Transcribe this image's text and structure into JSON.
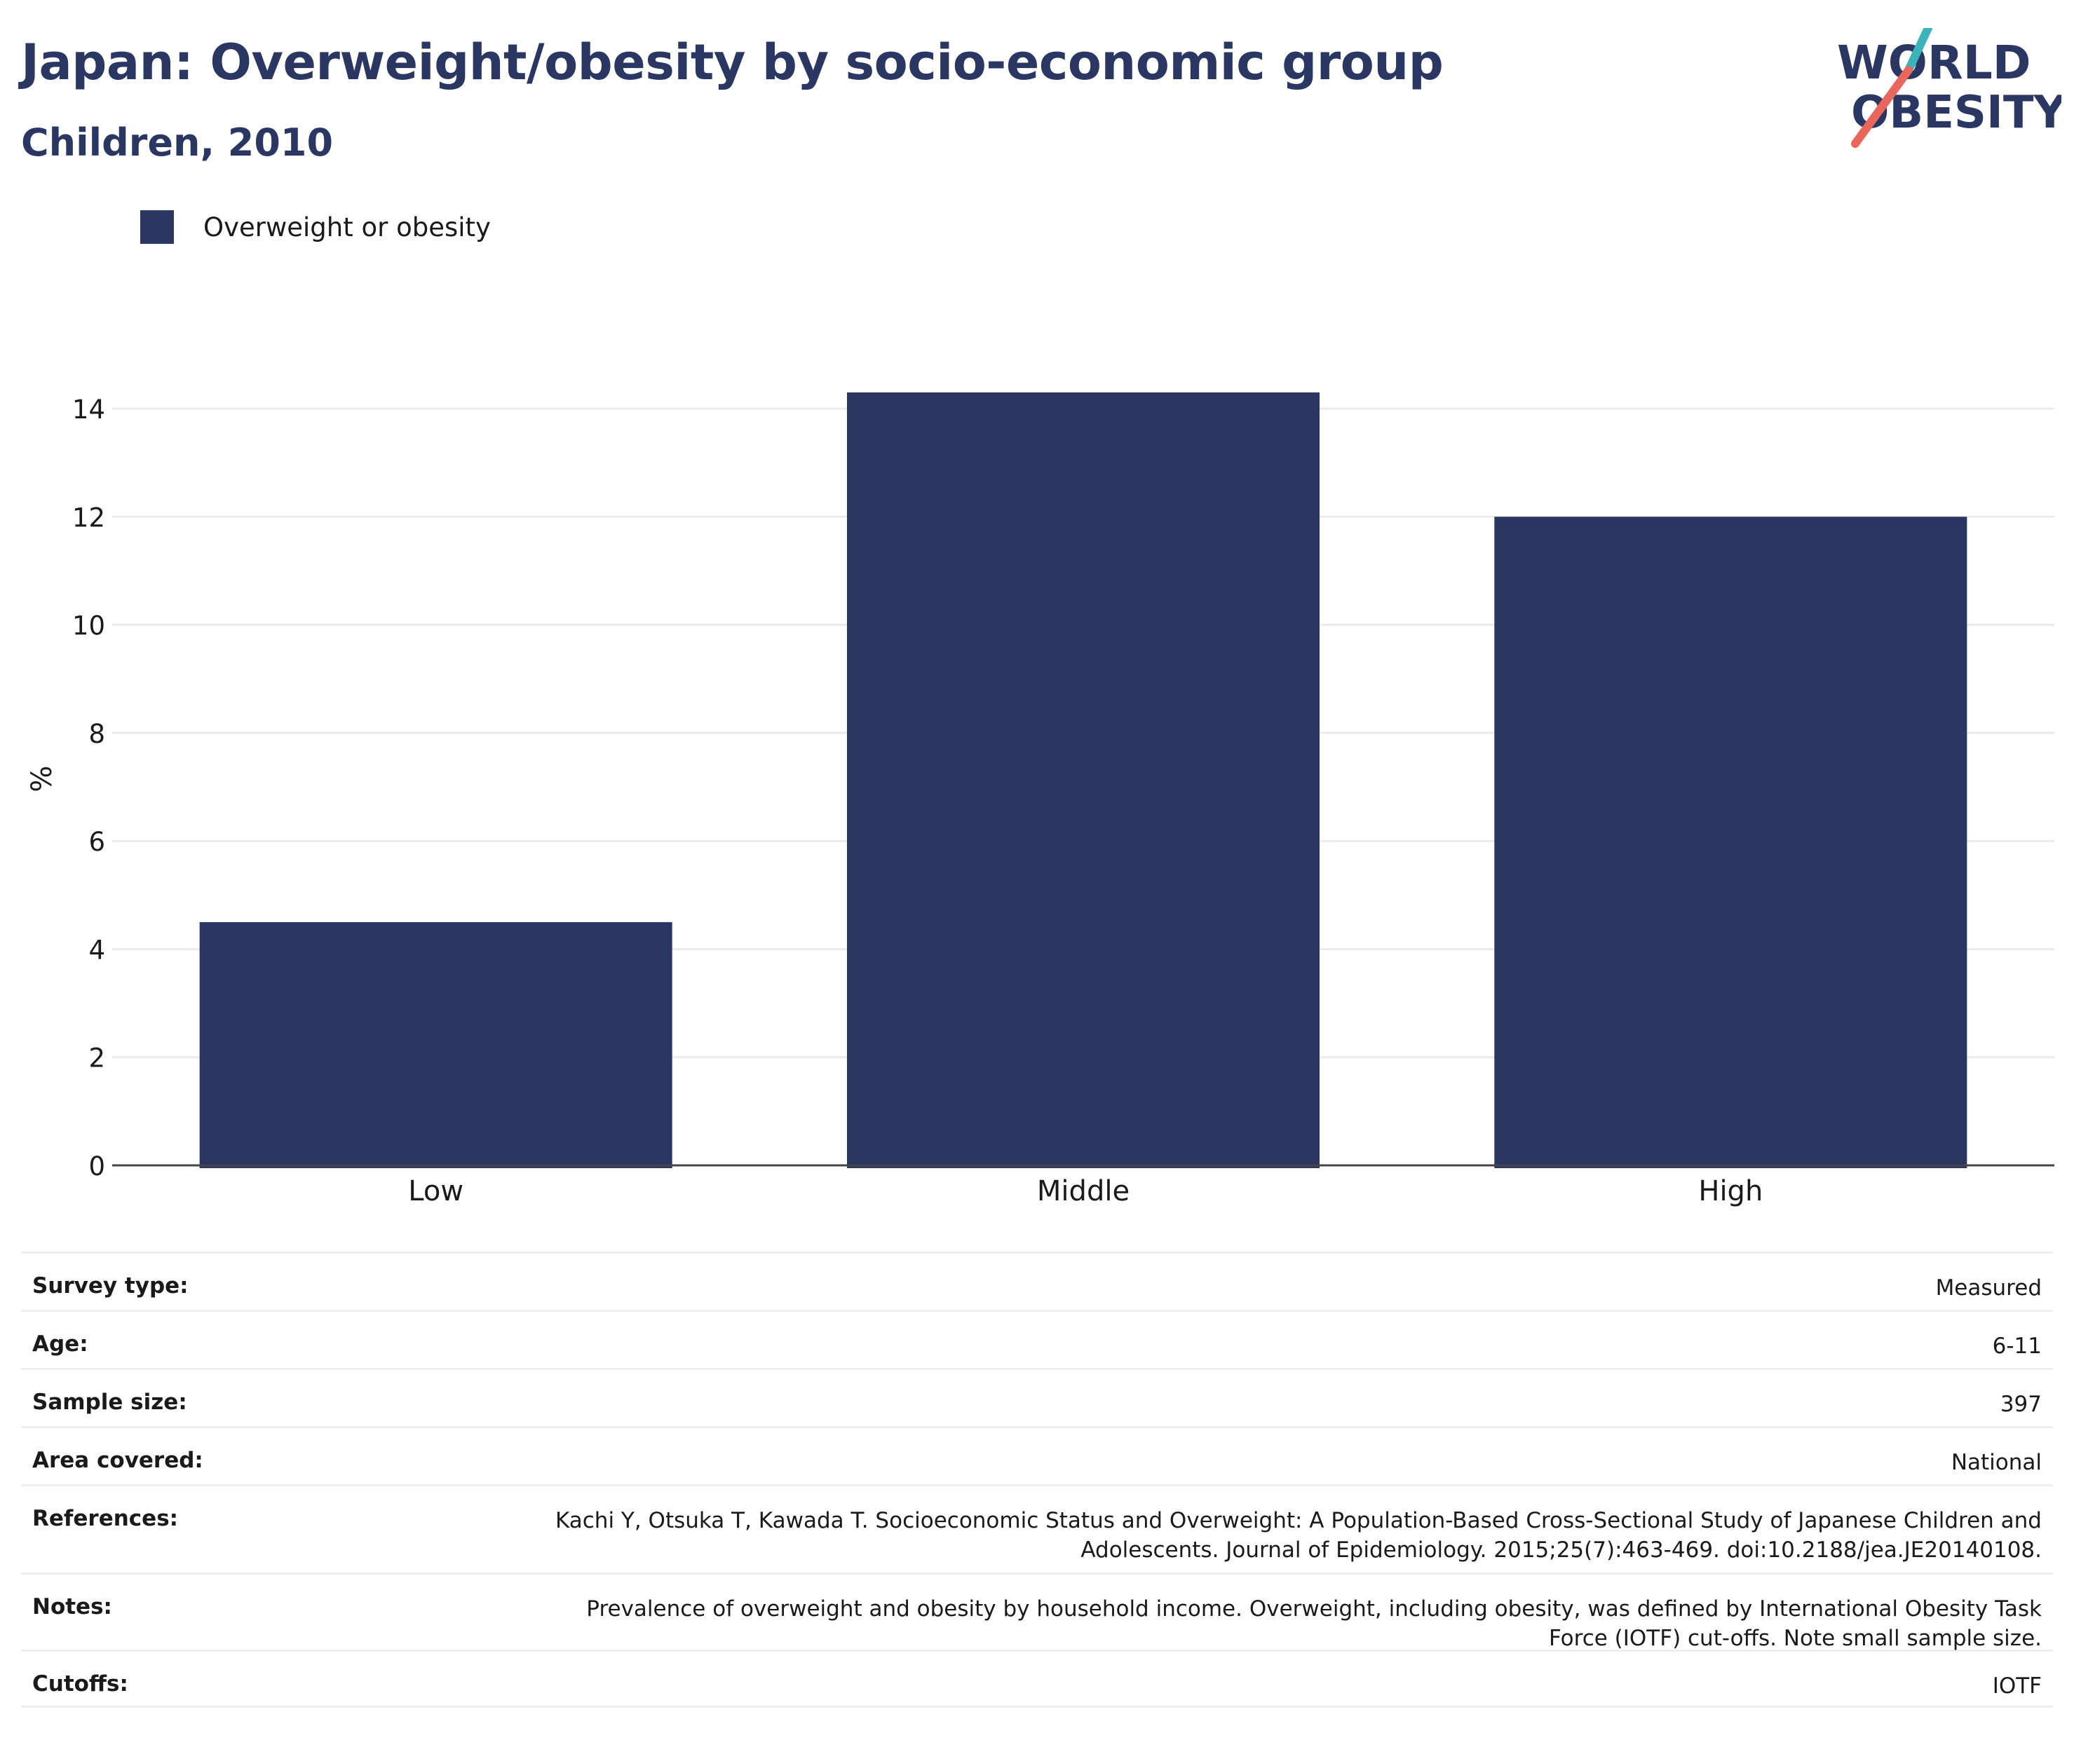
{
  "header": {
    "title": "Japan: Overweight/obesity by socio-economic group",
    "subtitle": "Children, 2010"
  },
  "logo": {
    "line1": "WORLD",
    "line2": "OBESITY",
    "colors": {
      "text": "#2b3763",
      "slash_top": "#3bb3b8",
      "slash_bottom": "#e8675a"
    }
  },
  "chart_data": {
    "type": "bar",
    "categories": [
      "Low",
      "Middle",
      "High"
    ],
    "series": [
      {
        "name": "Overweight or obesity",
        "values": [
          4.5,
          14.3,
          12.0
        ],
        "color": "#2b3763"
      }
    ],
    "title": "Japan: Overweight/obesity by socio-economic group",
    "subtitle": "Children, 2010",
    "xlabel": "",
    "ylabel": "%",
    "ylim": [
      0,
      14.3
    ],
    "yticks": [
      0,
      2,
      4,
      6,
      8,
      10,
      12,
      14
    ],
    "grid": true,
    "legend_position": "top-left"
  },
  "info": {
    "rows": [
      {
        "label": "Survey type:",
        "value": "Measured"
      },
      {
        "label": "Age:",
        "value": "6-11"
      },
      {
        "label": "Sample size:",
        "value": "397"
      },
      {
        "label": "Area covered:",
        "value": "National"
      },
      {
        "label": "References:",
        "value": "Kachi Y, Otsuka T, Kawada T. Socioeconomic Status and Overweight: A Population-Based Cross-Sectional Study of Japanese Children and Adolescents. Journal of Epidemiology. 2015;25(7):463-469. doi:10.2188/jea.JE20140108."
      },
      {
        "label": "Notes:",
        "value": "Prevalence of overweight and obesity by household income. Overweight, including obesity, was defined by International Obesity Task Force (IOTF) cut-offs. Note small sample size."
      },
      {
        "label": "Cutoffs:",
        "value": "IOTF"
      }
    ]
  }
}
